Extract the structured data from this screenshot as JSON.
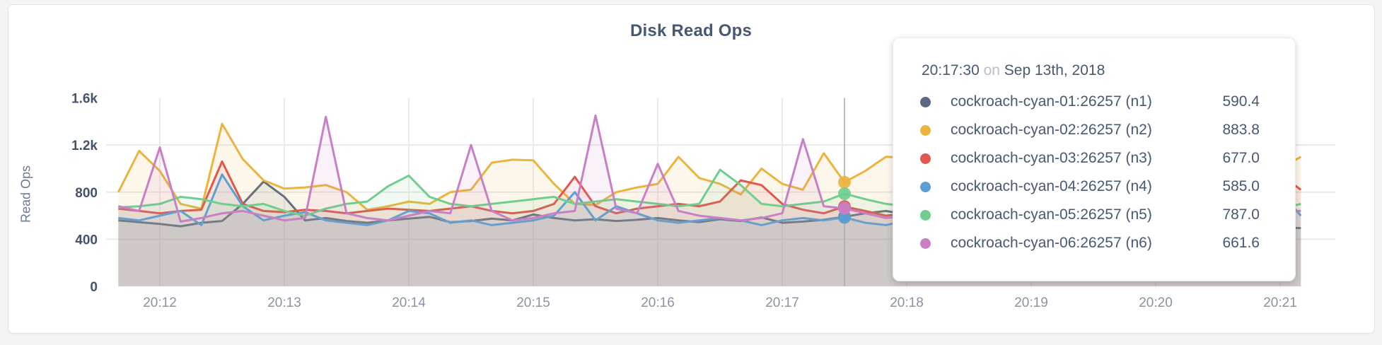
{
  "page": {
    "background": "#f4f4f5",
    "card_color": "#ffffff"
  },
  "tooltip": {
    "time": "20:17:30",
    "on_word": "on",
    "date": "Sep 13th, 2018",
    "rows": [
      {
        "label": "cockroach-cyan-01:26257 (n1)",
        "value": "590.4",
        "color": "#5a6882"
      },
      {
        "label": "cockroach-cyan-02:26257 (n2)",
        "value": "883.8",
        "color": "#eab43e"
      },
      {
        "label": "cockroach-cyan-03:26257 (n3)",
        "value": "677.0",
        "color": "#e0574e"
      },
      {
        "label": "cockroach-cyan-04:26257 (n4)",
        "value": "585.0",
        "color": "#5c9fd5"
      },
      {
        "label": "cockroach-cyan-05:26257 (n5)",
        "value": "787.0",
        "color": "#6fce8d"
      },
      {
        "label": "cockroach-cyan-06:26257 (n6)",
        "value": "661.6",
        "color": "#c97fc5"
      }
    ]
  },
  "chart_data": {
    "type": "area",
    "title": "Disk Read Ops",
    "ylabel": "Read Ops",
    "xlabel": "",
    "ylim": [
      0,
      1600
    ],
    "grid": true,
    "legend_position": "tooltip-only",
    "y_ticks": [
      {
        "v": 0,
        "label": "0"
      },
      {
        "v": 400,
        "label": "400"
      },
      {
        "v": 800,
        "label": "800"
      },
      {
        "v": 1200,
        "label": "1.2k"
      },
      {
        "v": 1600,
        "label": "1.6k"
      }
    ],
    "x_ticks": [
      {
        "t": 720,
        "label": "20:12"
      },
      {
        "t": 780,
        "label": "20:13"
      },
      {
        "t": 840,
        "label": "20:14"
      },
      {
        "t": 900,
        "label": "20:15"
      },
      {
        "t": 960,
        "label": "20:16"
      },
      {
        "t": 1020,
        "label": "20:17"
      },
      {
        "t": 1080,
        "label": "20:18"
      },
      {
        "t": 1140,
        "label": "20:19"
      },
      {
        "t": 1200,
        "label": "20:20"
      },
      {
        "t": 1260,
        "label": "20:21"
      }
    ],
    "x_note": "seconds after 20:00 on Sep 13th, 2018",
    "hover": {
      "t": 1050,
      "time_label": "20:17:30"
    },
    "x_seconds": [
      700,
      710,
      720,
      730,
      740,
      750,
      760,
      770,
      780,
      790,
      800,
      810,
      820,
      830,
      840,
      850,
      860,
      870,
      880,
      890,
      900,
      910,
      920,
      930,
      940,
      950,
      960,
      970,
      980,
      990,
      1000,
      1010,
      1020,
      1030,
      1040,
      1050,
      1060,
      1070,
      1080,
      1090,
      1100,
      1110,
      1120,
      1130,
      1140,
      1150,
      1160,
      1170,
      1180,
      1190,
      1200,
      1210,
      1220,
      1230,
      1240,
      1250,
      1260,
      1270
    ],
    "series": [
      {
        "name": "cockroach-cyan-01:26257 (n1)",
        "short": "n1",
        "color": "#5a6882",
        "values": [
          560,
          545,
          530,
          510,
          540,
          555,
          700,
          890,
          760,
          560,
          580,
          555,
          540,
          560,
          575,
          590,
          545,
          555,
          575,
          560,
          610,
          580,
          560,
          570,
          555,
          565,
          580,
          560,
          545,
          570,
          555,
          585,
          540,
          550,
          565,
          590.4,
          620,
          640,
          610,
          580,
          560,
          545,
          555,
          570,
          550,
          540,
          560,
          575,
          545,
          530,
          555,
          570,
          560,
          545,
          530,
          515,
          500,
          495
        ]
      },
      {
        "name": "cockroach-cyan-02:26257 (n2)",
        "short": "n2",
        "color": "#eab43e",
        "values": [
          800,
          1150,
          980,
          700,
          660,
          1380,
          1080,
          900,
          830,
          840,
          860,
          800,
          650,
          680,
          720,
          700,
          800,
          820,
          1050,
          1075,
          1070,
          870,
          700,
          690,
          800,
          840,
          870,
          1100,
          920,
          870,
          780,
          1000,
          870,
          820,
          1130,
          883.8,
          980,
          1100,
          1090,
          900,
          820,
          780,
          850,
          800,
          760,
          820,
          880,
          840,
          800,
          770,
          820,
          870,
          830,
          780,
          750,
          700,
          1000,
          1100
        ]
      },
      {
        "name": "cockroach-cyan-03:26257 (n3)",
        "short": "n3",
        "color": "#e0574e",
        "values": [
          660,
          640,
          620,
          640,
          650,
          1060,
          700,
          640,
          630,
          650,
          640,
          620,
          640,
          660,
          650,
          640,
          660,
          680,
          640,
          620,
          640,
          700,
          930,
          680,
          620,
          660,
          680,
          700,
          680,
          720,
          900,
          860,
          700,
          650,
          620,
          677,
          640,
          600,
          620,
          650,
          630,
          640,
          660,
          640,
          620,
          650,
          670,
          640,
          620,
          640,
          660,
          640,
          620,
          650,
          680,
          720,
          950,
          820
        ]
      },
      {
        "name": "cockroach-cyan-04:26257 (n4)",
        "short": "n4",
        "color": "#5c9fd5",
        "values": [
          580,
          560,
          600,
          640,
          520,
          950,
          680,
          560,
          600,
          630,
          560,
          540,
          520,
          560,
          640,
          620,
          540,
          560,
          520,
          540,
          560,
          600,
          800,
          560,
          680,
          620,
          560,
          540,
          560,
          580,
          560,
          520,
          560,
          580,
          560,
          585,
          540,
          520,
          560,
          600,
          560,
          540,
          520,
          560,
          580,
          560,
          540,
          560,
          520,
          540,
          560,
          580,
          560,
          540,
          600,
          1050,
          800,
          600
        ]
      },
      {
        "name": "cockroach-cyan-05:26257 (n5)",
        "short": "n5",
        "color": "#6fce8d",
        "values": [
          670,
          680,
          700,
          760,
          740,
          700,
          680,
          700,
          640,
          600,
          660,
          700,
          720,
          850,
          940,
          760,
          700,
          680,
          700,
          720,
          740,
          760,
          700,
          720,
          740,
          720,
          700,
          680,
          700,
          990,
          860,
          700,
          680,
          700,
          720,
          787,
          740,
          700,
          680,
          700,
          720,
          700,
          680,
          700,
          720,
          700,
          680,
          700,
          660,
          680,
          700,
          680,
          660,
          680,
          700,
          680,
          660,
          700
        ]
      },
      {
        "name": "cockroach-cyan-06:26257 (n6)",
        "short": "n6",
        "color": "#c97fc5",
        "values": [
          680,
          640,
          1180,
          550,
          580,
          620,
          640,
          600,
          560,
          580,
          1440,
          620,
          580,
          560,
          600,
          640,
          620,
          1200,
          640,
          560,
          580,
          620,
          640,
          1450,
          660,
          620,
          1040,
          640,
          600,
          580,
          560,
          580,
          620,
          1250,
          680,
          661.6,
          620,
          580,
          600,
          620,
          600,
          580,
          600,
          620,
          600,
          580,
          600,
          620,
          600,
          580,
          600,
          620,
          600,
          580,
          600,
          620,
          640,
          640
        ]
      }
    ]
  }
}
